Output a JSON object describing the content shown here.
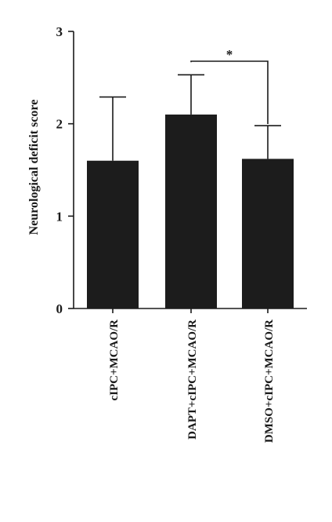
{
  "chart_data": {
    "type": "bar",
    "ylabel": "Neurological deficit score",
    "xlabel": "",
    "ylim": [
      0,
      3
    ],
    "yticks": [
      0,
      1,
      2,
      3
    ],
    "grid": false,
    "categories": [
      "cIPC+MCAO/R",
      "DAPT+cIPC+MCAO/R",
      "DMSO+cIPC+MCAO/R"
    ],
    "values": [
      1.6,
      2.1,
      1.62
    ],
    "error_upper": [
      2.29,
      2.53,
      1.98
    ],
    "bar_color": "#1c1c1c",
    "annotations": [
      {
        "type": "significance-bracket",
        "from_category": 1,
        "to_category": 2,
        "label": "*"
      }
    ]
  }
}
